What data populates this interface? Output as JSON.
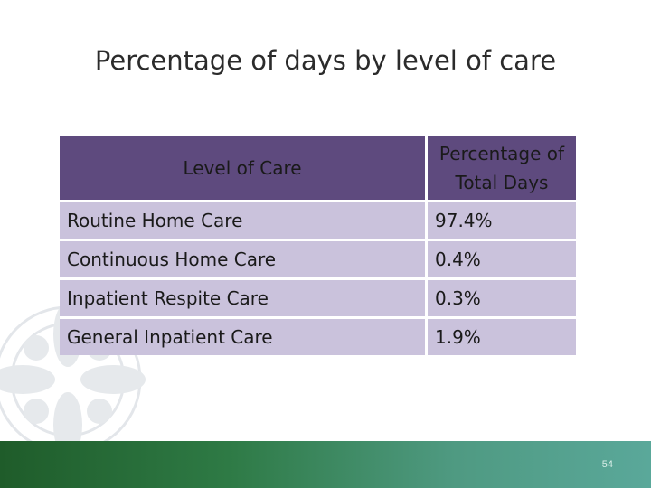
{
  "title": "Percentage of days by level of care",
  "table": {
    "headers": [
      "Level of Care",
      "Percentage of Total Days"
    ],
    "rows": [
      {
        "level": "Routine Home Care",
        "percent": "97.4%"
      },
      {
        "level": "Continuous Home Care",
        "percent": "0.4%"
      },
      {
        "level": "Inpatient Respite Care",
        "percent": "0.3%"
      },
      {
        "level": "General Inpatient Care",
        "percent": "1.9%"
      }
    ]
  },
  "colors": {
    "header_bg": "#5e4a7e",
    "cell_bg": "#cac2dc",
    "footer": "#2e7a45"
  },
  "page_number": "54"
}
